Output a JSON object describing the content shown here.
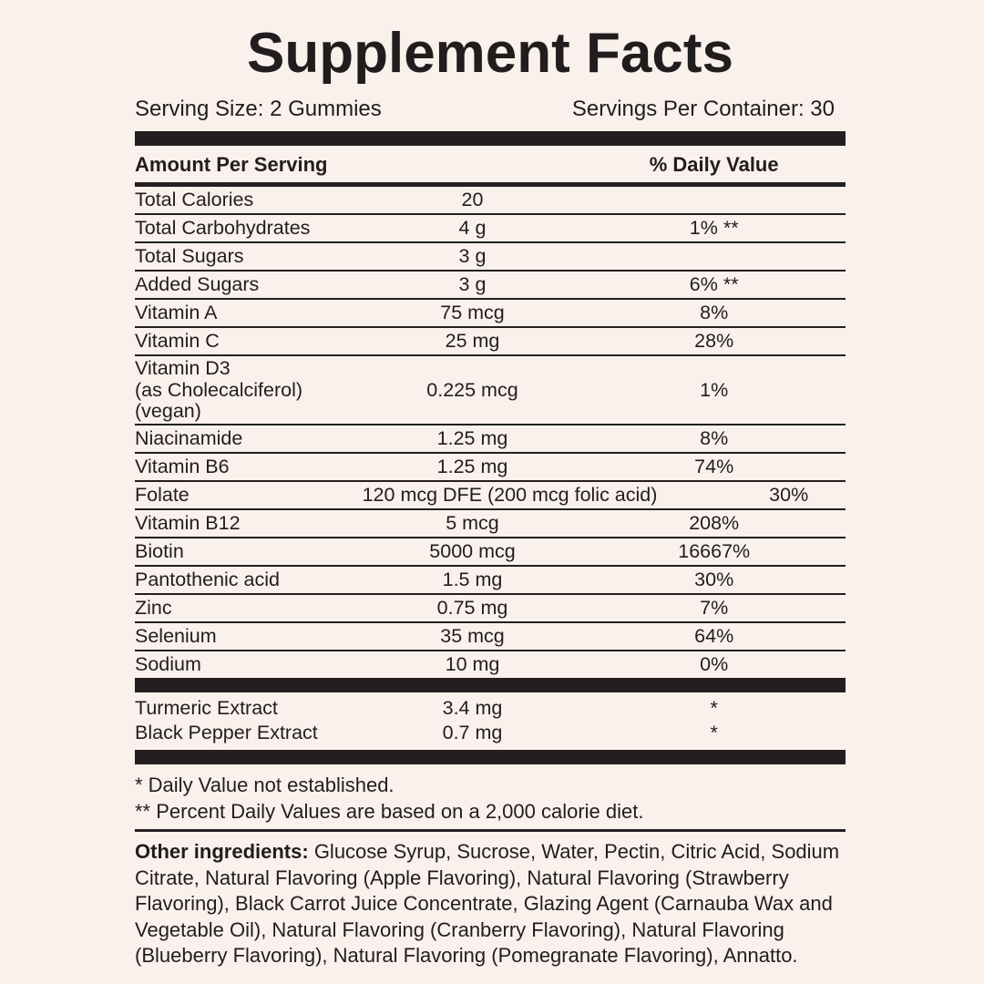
{
  "title": "Supplement Facts",
  "serving": {
    "size": "Serving Size: 2 Gummies",
    "per_container": "Servings Per Container: 30"
  },
  "table": {
    "header": {
      "amount_per_serving": "Amount Per Serving",
      "daily_value": "% Daily Value"
    },
    "rows": [
      {
        "name": "Total Calories",
        "name2": "",
        "amount": "20",
        "dv": ""
      },
      {
        "name": "Total Carbohydrates",
        "name2": "",
        "amount": "4 g",
        "dv": "1% **"
      },
      {
        "name": "Total Sugars",
        "name2": "",
        "amount": "3 g",
        "dv": ""
      },
      {
        "name": "Added Sugars",
        "name2": "",
        "amount": "3 g",
        "dv": "6% **"
      },
      {
        "name": "Vitamin A",
        "name2": "",
        "amount": "75 mcg",
        "dv": "8%"
      },
      {
        "name": "Vitamin C",
        "name2": "",
        "amount": "25 mg",
        "dv": "28%"
      },
      {
        "name": "Vitamin D3",
        "name2": "(as Cholecalciferol) (vegan)",
        "amount": "0.225 mcg",
        "dv": "1%"
      },
      {
        "name": "Niacinamide",
        "name2": "",
        "amount": "1.25 mg",
        "dv": "8%"
      },
      {
        "name": "Vitamin B6",
        "name2": "",
        "amount": "1.25 mg",
        "dv": "74%"
      },
      {
        "name": "Folate",
        "name2": "",
        "amount": "120 mcg DFE (200 mcg folic acid)",
        "dv": "30%"
      },
      {
        "name": "Vitamin B12",
        "name2": "",
        "amount": "5 mcg",
        "dv": "208%"
      },
      {
        "name": "Biotin",
        "name2": "",
        "amount": "5000 mcg",
        "dv": "16667%"
      },
      {
        "name": "Pantothenic acid",
        "name2": "",
        "amount": "1.5 mg",
        "dv": "30%"
      },
      {
        "name": "Zinc",
        "name2": "",
        "amount": "0.75 mg",
        "dv": "7%"
      },
      {
        "name": "Selenium",
        "name2": "",
        "amount": "35 mcg",
        "dv": "64%"
      },
      {
        "name": "Sodium",
        "name2": "",
        "amount": "10 mg",
        "dv": "0%"
      }
    ],
    "extra_rows": [
      {
        "name": "Turmeric Extract",
        "name2": "",
        "amount": "3.4 mg",
        "dv": "*"
      },
      {
        "name": "Black Pepper Extract",
        "name2": "",
        "amount": "0.7 mg",
        "dv": "*"
      }
    ]
  },
  "footnotes": [
    "* Daily Value not established.",
    "** Percent Daily Values are based on a 2,000 calorie diet."
  ],
  "other_ingredients": {
    "label": "Other ingredients:",
    "text": "Glucose Syrup, Sucrose, Water, Pectin, Citric Acid, Sodium Citrate, Natural Flavoring (Apple Flavoring), Natural Flavoring (Strawberry Flavoring), Black Carrot Juice Concentrate, Glazing Agent (Carnauba Wax and Vegetable Oil), Natural Flavoring (Cranberry Flavoring), Natural Flavoring (Blueberry Flavoring), Natural Flavoring (Pomegranate Flavoring), Annatto."
  },
  "colors": {
    "background": "#faf1ec",
    "ink": "#211d1e",
    "bar": "#231f20"
  }
}
